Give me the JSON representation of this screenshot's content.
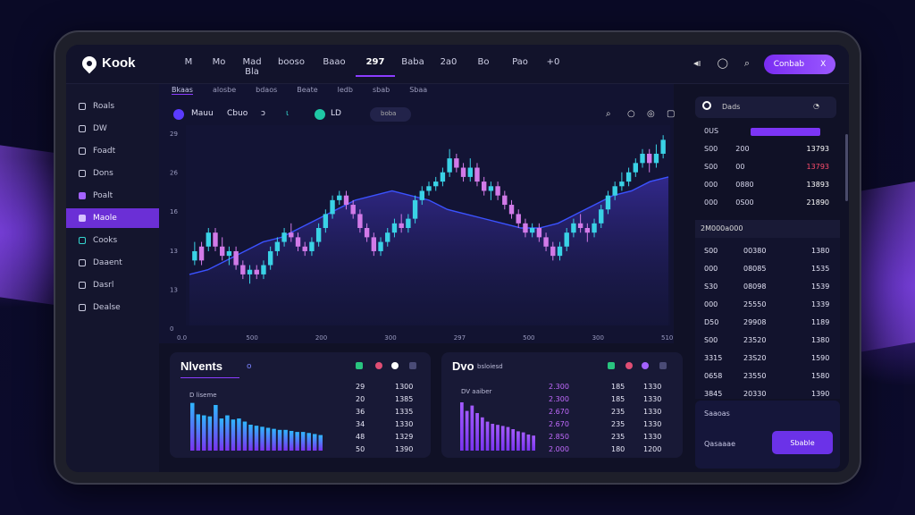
{
  "app": {
    "name": "Kook",
    "brand_color": "#8b3cff"
  },
  "nav": {
    "items": [
      "M",
      "Mo",
      "Mad Bla",
      "booso",
      "Baao",
      "297",
      "Baba",
      "2a0",
      "Bo",
      "Pao",
      "+0"
    ],
    "active_index": 5
  },
  "top_icons": [
    "bell-icon",
    "circle-icon",
    "search-icon"
  ],
  "cta": {
    "label": "Conbab",
    "close": "X"
  },
  "sidebar": {
    "items": [
      {
        "label": "Roals",
        "icon": "circle-icon"
      },
      {
        "label": "DW",
        "icon": "square-icon"
      },
      {
        "label": "Foadt",
        "icon": "pin-icon"
      },
      {
        "label": "Dons",
        "icon": "square-icon"
      },
      {
        "label": "Poalt",
        "icon": "flag-icon"
      },
      {
        "label": "Maole",
        "icon": "square-icon"
      },
      {
        "label": "Cooks",
        "icon": "square-icon"
      },
      {
        "label": "Daaent",
        "icon": "circle-icon"
      },
      {
        "label": "Dasrl",
        "icon": "square-icon"
      },
      {
        "label": "Dealse",
        "icon": "circle-icon"
      }
    ],
    "active_index": 5
  },
  "subtabs": [
    "Bkaas",
    "alosbe",
    "bdaos",
    "Beate",
    "ledb",
    "sbab",
    "Sbaa"
  ],
  "chart_toolbar": {
    "symbol": "Mauu",
    "name": "Cbuo",
    "change": "ↄ",
    "icon2": "ɩ",
    "market": "LD",
    "pill": "boba"
  },
  "chart_data": {
    "type": "candlestick",
    "ytick_labels": [
      "29",
      "26",
      "16",
      "13",
      "13",
      "0"
    ],
    "xtick_labels": [
      "0.0",
      "500",
      "200",
      "300",
      "297",
      "500",
      "300",
      "510"
    ],
    "candles": [
      [
        16,
        14,
        18,
        13,
        "b"
      ],
      [
        14,
        17,
        18,
        13,
        "p"
      ],
      [
        17,
        20,
        21,
        16,
        "b"
      ],
      [
        20,
        17,
        21,
        16,
        "p"
      ],
      [
        17,
        15,
        19,
        14,
        "p"
      ],
      [
        15,
        16,
        17,
        13,
        "b"
      ],
      [
        16,
        13,
        17,
        12,
        "p"
      ],
      [
        13,
        11,
        14,
        10,
        "p"
      ],
      [
        11,
        12,
        13,
        9,
        "b"
      ],
      [
        12,
        11,
        13,
        10,
        "p"
      ],
      [
        11,
        13,
        14,
        10,
        "b"
      ],
      [
        13,
        16,
        17,
        12,
        "b"
      ],
      [
        16,
        18,
        19,
        15,
        "b"
      ],
      [
        18,
        20,
        21,
        17,
        "b"
      ],
      [
        20,
        19,
        22,
        18,
        "p"
      ],
      [
        19,
        17,
        20,
        16,
        "p"
      ],
      [
        17,
        16,
        18,
        15,
        "p"
      ],
      [
        16,
        18,
        19,
        15,
        "b"
      ],
      [
        18,
        21,
        22,
        17,
        "b"
      ],
      [
        21,
        24,
        25,
        20,
        "b"
      ],
      [
        24,
        27,
        28,
        23,
        "b"
      ],
      [
        27,
        28,
        29,
        26,
        "b"
      ],
      [
        28,
        26,
        29,
        25,
        "p"
      ],
      [
        26,
        24,
        27,
        23,
        "p"
      ],
      [
        24,
        21,
        25,
        20,
        "p"
      ],
      [
        21,
        19,
        22,
        18,
        "p"
      ],
      [
        19,
        16,
        20,
        15,
        "p"
      ],
      [
        16,
        18,
        19,
        15,
        "b"
      ],
      [
        18,
        20,
        21,
        17,
        "b"
      ],
      [
        20,
        22,
        23,
        19,
        "b"
      ],
      [
        22,
        21,
        24,
        20,
        "p"
      ],
      [
        21,
        23,
        24,
        20,
        "b"
      ],
      [
        23,
        27,
        28,
        22,
        "b"
      ],
      [
        27,
        29,
        30,
        26,
        "b"
      ],
      [
        29,
        30,
        31,
        28,
        "b"
      ],
      [
        30,
        31,
        32,
        29,
        "b"
      ],
      [
        31,
        33,
        34,
        30,
        "b"
      ],
      [
        33,
        36,
        38,
        32,
        "b"
      ],
      [
        36,
        34,
        37,
        33,
        "p"
      ],
      [
        34,
        32,
        35,
        31,
        "p"
      ],
      [
        32,
        34,
        36,
        31,
        "b"
      ],
      [
        34,
        31,
        35,
        30,
        "p"
      ],
      [
        31,
        29,
        32,
        28,
        "p"
      ],
      [
        29,
        30,
        31,
        27,
        "b"
      ],
      [
        30,
        28,
        31,
        27,
        "p"
      ],
      [
        28,
        26,
        29,
        25,
        "p"
      ],
      [
        26,
        24,
        27,
        23,
        "p"
      ],
      [
        24,
        22,
        25,
        21,
        "p"
      ],
      [
        22,
        20,
        23,
        19,
        "p"
      ],
      [
        20,
        21,
        22,
        19,
        "b"
      ],
      [
        21,
        19,
        22,
        18,
        "p"
      ],
      [
        19,
        17,
        20,
        16,
        "p"
      ],
      [
        17,
        15,
        18,
        14,
        "p"
      ],
      [
        15,
        17,
        18,
        14,
        "b"
      ],
      [
        17,
        20,
        21,
        16,
        "b"
      ],
      [
        20,
        22,
        23,
        19,
        "b"
      ],
      [
        22,
        21,
        24,
        20,
        "p"
      ],
      [
        21,
        20,
        22,
        18,
        "p"
      ],
      [
        20,
        22,
        23,
        19,
        "b"
      ],
      [
        22,
        25,
        26,
        21,
        "b"
      ],
      [
        25,
        28,
        29,
        24,
        "b"
      ],
      [
        28,
        30,
        31,
        27,
        "b"
      ],
      [
        30,
        31,
        33,
        29,
        "b"
      ],
      [
        31,
        33,
        34,
        30,
        "b"
      ],
      [
        33,
        35,
        36,
        32,
        "b"
      ],
      [
        35,
        37,
        38,
        34,
        "b"
      ],
      [
        37,
        35,
        38,
        33,
        "p"
      ],
      [
        35,
        37,
        39,
        34,
        "b"
      ],
      [
        37,
        40,
        41,
        36,
        "b"
      ]
    ],
    "trend": [
      11,
      12,
      14,
      16,
      18,
      19,
      21,
      23,
      25,
      27,
      28,
      29,
      28,
      27,
      25,
      24,
      23,
      22,
      21,
      21,
      22,
      24,
      26,
      28,
      29,
      31,
      32
    ],
    "ymin": 0,
    "ymax": 42
  },
  "order_book": {
    "header": {
      "label": "Dads",
      "icon": "sun-icon"
    },
    "rows": [
      {
        "left": "0US",
        "mid": "",
        "right": "",
        "bar": 0.65
      },
      {
        "left": "S00",
        "mid": "200",
        "right": "13793",
        "color": "#ffffff"
      },
      {
        "left": "S00",
        "mid": "00",
        "right": "13793",
        "color": "#ff4d6d"
      },
      {
        "left": "000",
        "mid": "0880",
        "right": "13893",
        "color": "#ffffff"
      },
      {
        "left": "000",
        "mid": "0S00",
        "right": "21890",
        "color": "#ffffff"
      }
    ]
  },
  "trades": {
    "header": "2M000a000",
    "rows": [
      [
        "S00",
        "00380",
        "1380"
      ],
      [
        "000",
        "08085",
        "1535"
      ],
      [
        "S30",
        "08098",
        "1539"
      ],
      [
        "000",
        "25550",
        "1339"
      ],
      [
        "D50",
        "29908",
        "1189"
      ],
      [
        "S00",
        "23520",
        "1380"
      ],
      [
        "3315",
        "23S20",
        "1590"
      ],
      [
        "0658",
        "23550",
        "1580"
      ],
      [
        "3845",
        "20330",
        "1390"
      ]
    ]
  },
  "order_form": {
    "label": "Saaoas",
    "field": "Qasaaae",
    "button": "Sbable"
  },
  "movements": {
    "title": "Nlvents",
    "tag": "o",
    "sub_label": "D liseme",
    "bars": [
      92,
      70,
      68,
      66,
      88,
      62,
      68,
      60,
      62,
      56,
      50,
      48,
      46,
      44,
      42,
      40,
      40,
      38,
      36,
      36,
      34,
      32,
      30
    ],
    "table": [
      [
        "29",
        "1300"
      ],
      [
        "20",
        "1385"
      ],
      [
        "36",
        "1335"
      ],
      [
        "34",
        "1330"
      ],
      [
        "48",
        "1329"
      ],
      [
        "50",
        "1390"
      ]
    ]
  },
  "divs": {
    "title": "Dvo",
    "subtitle": "bsloiesd",
    "sub_label": "DV aaiber",
    "bars": [
      90,
      74,
      84,
      70,
      62,
      54,
      50,
      48,
      46,
      44,
      40,
      36,
      34,
      30,
      28
    ],
    "table": [
      [
        "2.300",
        "185",
        "1330"
      ],
      [
        "2.300",
        "185",
        "1330"
      ],
      [
        "2.670",
        "235",
        "1330"
      ],
      [
        "2.670",
        "235",
        "1330"
      ],
      [
        "2.850",
        "235",
        "1330"
      ],
      [
        "2.000",
        "180",
        "1200"
      ]
    ]
  }
}
